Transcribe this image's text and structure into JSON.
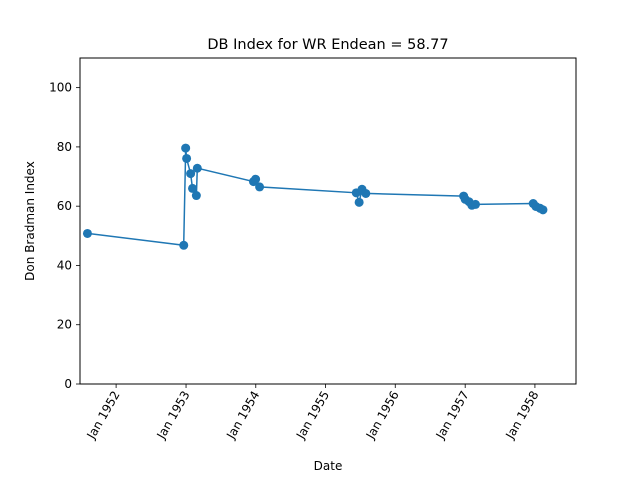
{
  "chart_data": {
    "type": "line",
    "title": "DB Index for WR Endean = 58.77",
    "xlabel": "Date",
    "ylabel": "Don Bradman Index",
    "ylim": [
      0,
      110
    ],
    "xlim": [
      "1951-06-26",
      "1958-08-04"
    ],
    "grid": false,
    "x_ticks": [
      {
        "date": "1952-01-01",
        "label": "Jan 1952"
      },
      {
        "date": "1953-01-01",
        "label": "Jan 1953"
      },
      {
        "date": "1954-01-01",
        "label": "Jan 1954"
      },
      {
        "date": "1955-01-01",
        "label": "Jan 1955"
      },
      {
        "date": "1956-01-01",
        "label": "Jan 1956"
      },
      {
        "date": "1957-01-01",
        "label": "Jan 1957"
      },
      {
        "date": "1958-01-01",
        "label": "Jan 1958"
      }
    ],
    "y_ticks": [
      0,
      20,
      40,
      60,
      80,
      100
    ],
    "series": [
      {
        "color": "#1f77b4",
        "points": [
          {
            "x": "1951-08-04",
            "y": 50.8
          },
          {
            "x": "1952-12-20",
            "y": 46.8
          },
          {
            "x": "1952-12-30",
            "y": 79.6
          },
          {
            "x": "1953-01-04",
            "y": 76.1
          },
          {
            "x": "1953-01-25",
            "y": 71.0
          },
          {
            "x": "1953-02-04",
            "y": 66.0
          },
          {
            "x": "1953-02-24",
            "y": 63.6
          },
          {
            "x": "1953-03-01",
            "y": 72.8
          },
          {
            "x": "1953-12-20",
            "y": 68.3
          },
          {
            "x": "1953-12-31",
            "y": 69.1
          },
          {
            "x": "1954-01-21",
            "y": 66.5
          },
          {
            "x": "1955-06-11",
            "y": 64.5
          },
          {
            "x": "1955-06-26",
            "y": 61.3
          },
          {
            "x": "1955-07-11",
            "y": 65.7
          },
          {
            "x": "1955-07-31",
            "y": 64.3
          },
          {
            "x": "1956-12-24",
            "y": 63.4
          },
          {
            "x": "1957-01-01",
            "y": 62.3
          },
          {
            "x": "1957-01-21",
            "y": 61.5
          },
          {
            "x": "1957-02-05",
            "y": 60.3
          },
          {
            "x": "1957-02-24",
            "y": 60.6
          },
          {
            "x": "1957-12-23",
            "y": 60.9
          },
          {
            "x": "1958-01-06",
            "y": 59.9
          },
          {
            "x": "1958-01-28",
            "y": 59.3
          },
          {
            "x": "1958-02-12",
            "y": 58.77
          }
        ]
      }
    ]
  }
}
